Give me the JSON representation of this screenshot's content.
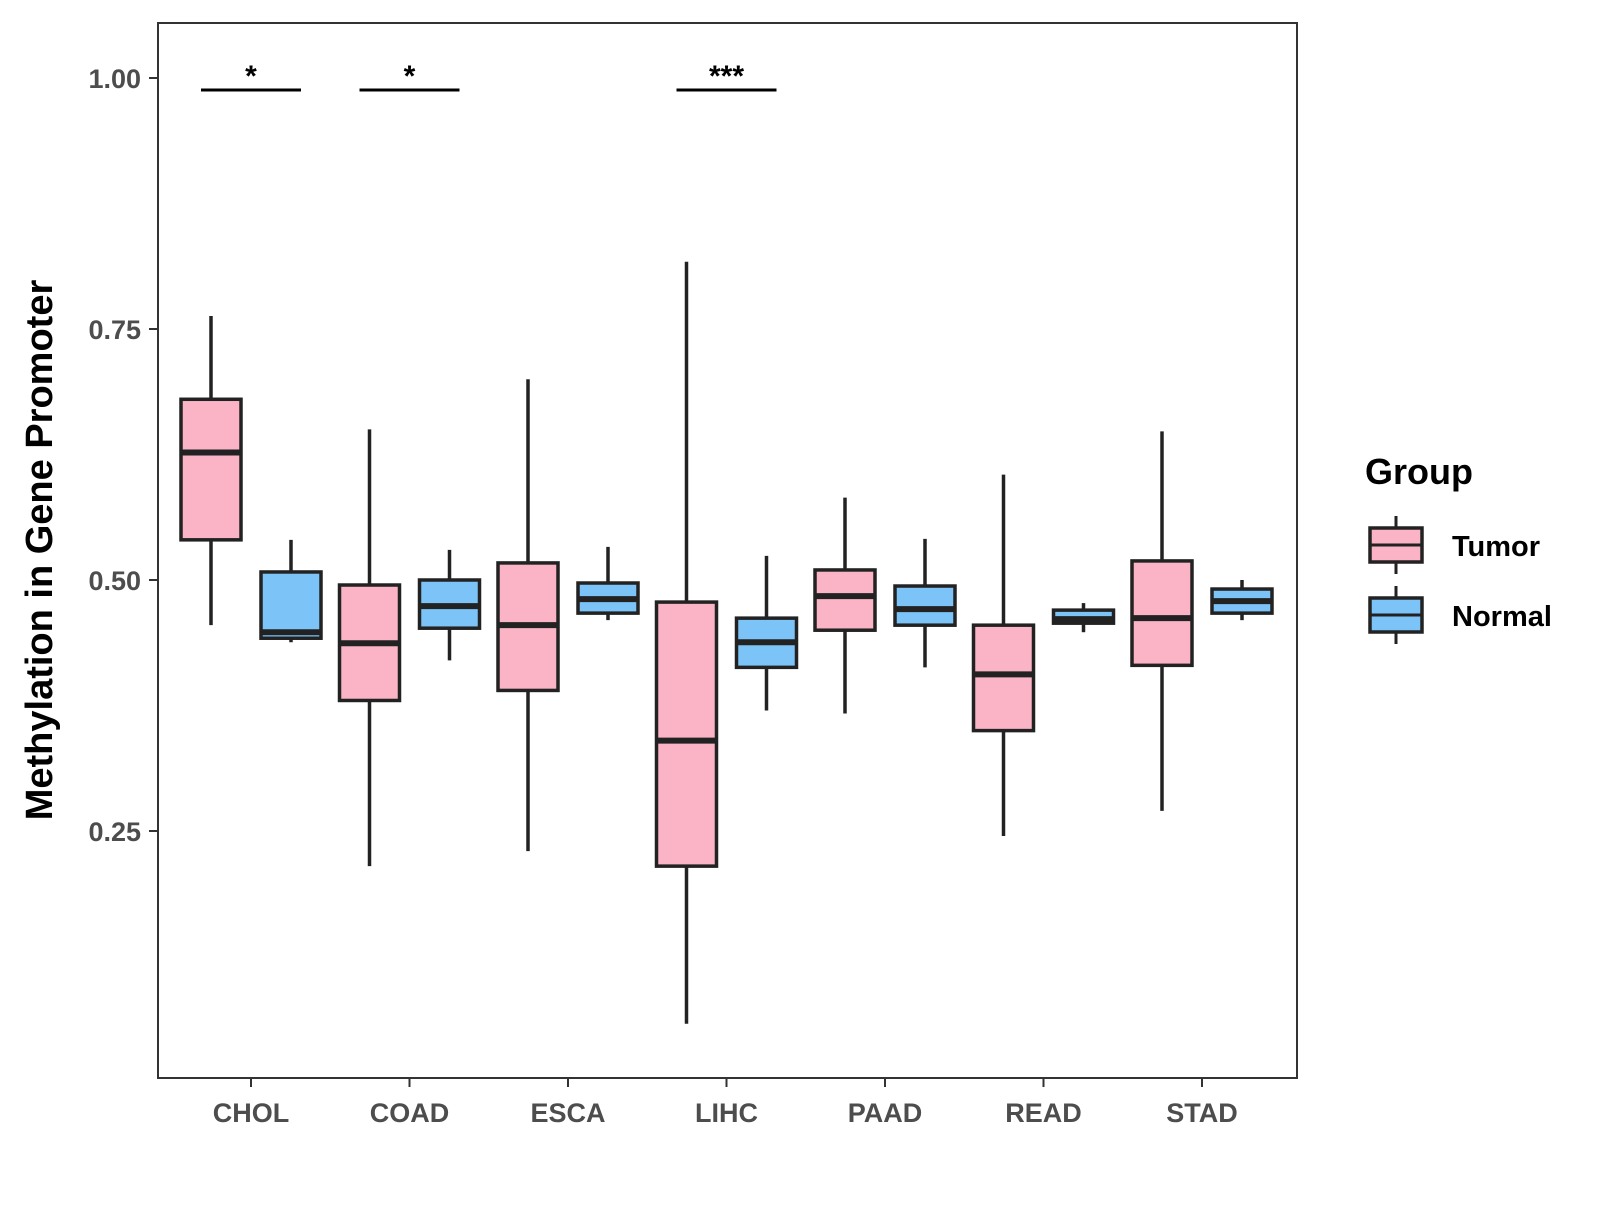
{
  "chart_data": {
    "type": "boxplot",
    "title": "",
    "xlabel": "",
    "ylabel": "Methylation in Gene Promoter",
    "ylim": [
      0.01,
      1.06
    ],
    "yticks": [
      0.25,
      0.5,
      0.75,
      1.0
    ],
    "ytick_labels": [
      "0.25",
      "0.50",
      "0.75",
      "1.00"
    ],
    "categories": [
      "CHOL",
      "COAD",
      "ESCA",
      "LIHC",
      "PAAD",
      "READ",
      "STAD"
    ],
    "grid": false,
    "legend": {
      "title": "Group",
      "position": "right",
      "entries": [
        {
          "name": "Tumor",
          "color": "#fbb4c6"
        },
        {
          "name": "Normal",
          "color": "#7cc4f8"
        }
      ]
    },
    "series": [
      {
        "name": "Tumor",
        "color": "#fbb4c6",
        "boxes": [
          {
            "category": "CHOL",
            "min": 0.455,
            "q1": 0.54,
            "median": 0.627,
            "q3": 0.68,
            "max": 0.763
          },
          {
            "category": "COAD",
            "min": 0.215,
            "q1": 0.38,
            "median": 0.437,
            "q3": 0.495,
            "max": 0.65
          },
          {
            "category": "ESCA",
            "min": 0.23,
            "q1": 0.39,
            "median": 0.455,
            "q3": 0.517,
            "max": 0.7
          },
          {
            "category": "LIHC",
            "min": 0.058,
            "q1": 0.215,
            "median": 0.34,
            "q3": 0.478,
            "max": 0.817
          },
          {
            "category": "PAAD",
            "min": 0.367,
            "q1": 0.45,
            "median": 0.484,
            "q3": 0.51,
            "max": 0.582
          },
          {
            "category": "READ",
            "min": 0.245,
            "q1": 0.35,
            "median": 0.406,
            "q3": 0.455,
            "max": 0.605
          },
          {
            "category": "STAD",
            "min": 0.27,
            "q1": 0.415,
            "median": 0.462,
            "q3": 0.519,
            "max": 0.648
          }
        ]
      },
      {
        "name": "Normal",
        "color": "#7cc4f8",
        "boxes": [
          {
            "category": "CHOL",
            "min": 0.438,
            "q1": 0.442,
            "median": 0.448,
            "q3": 0.508,
            "max": 0.54
          },
          {
            "category": "COAD",
            "min": 0.42,
            "q1": 0.452,
            "median": 0.474,
            "q3": 0.5,
            "max": 0.53
          },
          {
            "category": "ESCA",
            "min": 0.46,
            "q1": 0.467,
            "median": 0.481,
            "q3": 0.497,
            "max": 0.533
          },
          {
            "category": "LIHC",
            "min": 0.37,
            "q1": 0.413,
            "median": 0.438,
            "q3": 0.462,
            "max": 0.524
          },
          {
            "category": "PAAD",
            "min": 0.413,
            "q1": 0.455,
            "median": 0.471,
            "q3": 0.494,
            "max": 0.541
          },
          {
            "category": "READ",
            "min": 0.448,
            "q1": 0.457,
            "median": 0.461,
            "q3": 0.47,
            "max": 0.477
          },
          {
            "category": "STAD",
            "min": 0.46,
            "q1": 0.467,
            "median": 0.479,
            "q3": 0.491,
            "max": 0.5
          }
        ]
      }
    ],
    "annotations": [
      {
        "category": "CHOL",
        "label": "*",
        "y": 0.988
      },
      {
        "category": "COAD",
        "label": "*",
        "y": 0.988
      },
      {
        "category": "LIHC",
        "label": "***",
        "y": 0.988
      }
    ]
  }
}
